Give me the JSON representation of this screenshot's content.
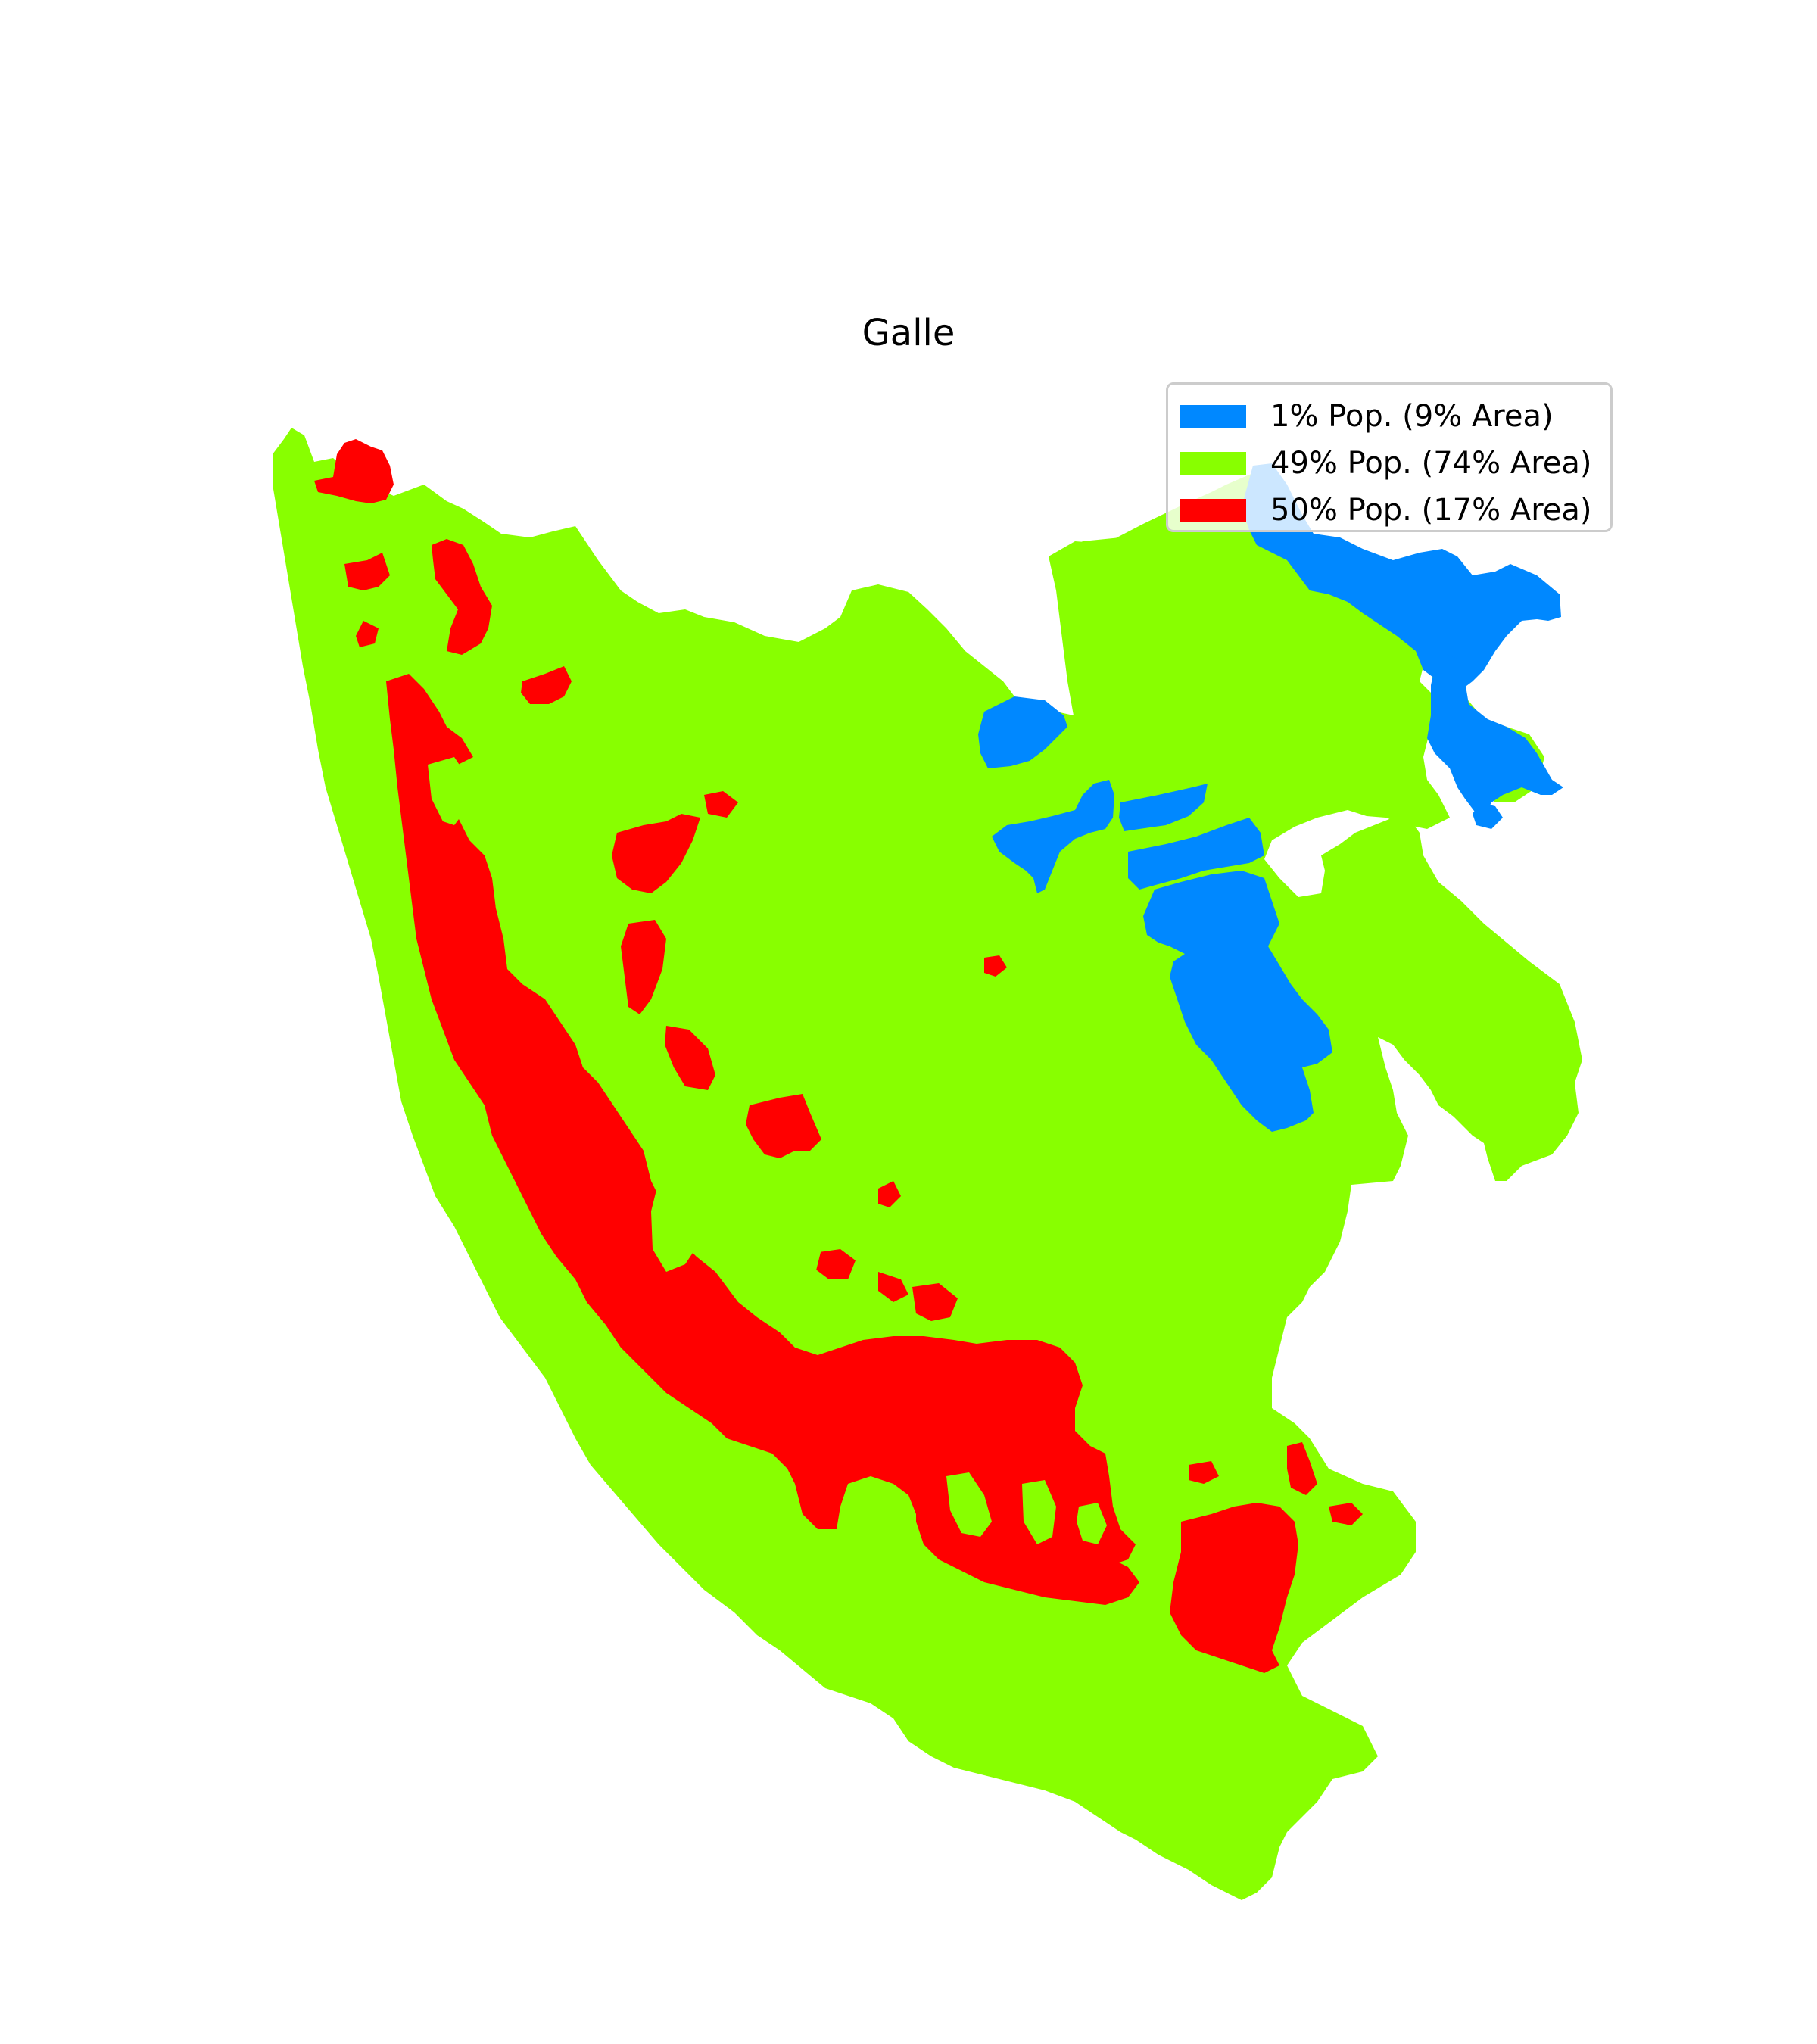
{
  "title": "Galle",
  "colors": {
    "low": "#0088ff",
    "mid": "#88ff00",
    "high": "#ff0000"
  },
  "legend": [
    {
      "label": "1% Pop. (9% Area)",
      "color": "#0088ff"
    },
    {
      "label": "49% Pop. (74% Area)",
      "color": "#88ff00"
    },
    {
      "label": "50% Pop. (17% Area)",
      "color": "#ff0000"
    }
  ],
  "chart_data": {
    "type": "choropleth",
    "title": "Galle",
    "categories": [
      {
        "name": "1% Pop. (9% Area)",
        "population_share": 1,
        "area_share": 9
      },
      {
        "name": "49% Pop. (74% Area)",
        "population_share": 49,
        "area_share": 74
      },
      {
        "name": "50% Pop. (17% Area)",
        "population_share": 50,
        "area_share": 17
      }
    ],
    "legend_position": "top-right"
  }
}
